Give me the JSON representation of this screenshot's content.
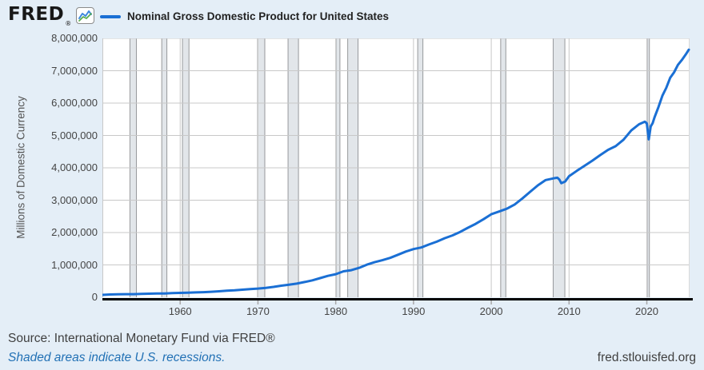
{
  "header": {
    "logo_text": "FRED",
    "registered": "®"
  },
  "footer": {
    "source_text": "Source: International Monetary Fund via FRED®",
    "recession_note": "Shaded areas indicate U.S. recessions.",
    "site_url": "fred.stlouisfed.org"
  },
  "colors": {
    "background": "#e4eef7",
    "plot_background": "#ffffff",
    "line": "#1a6fd4",
    "gridline": "#c8c8c8",
    "recession_fill": "#e2e6ea",
    "recession_edge": "#97999c",
    "axis": "#000000",
    "tick_mark": "#a8a8a8",
    "text": "#444444",
    "link": "#2271b5"
  },
  "chart_data": {
    "type": "line",
    "title": "Nominal Gross Domestic Product for United States",
    "xlabel": "",
    "ylabel": "Millions of Domestic Currency",
    "x_domain": [
      1950,
      2025.5
    ],
    "y_domain": [
      0,
      8000000
    ],
    "x_ticks": [
      1960,
      1970,
      1980,
      1990,
      2000,
      2010,
      2020
    ],
    "y_ticks": [
      0,
      1000000,
      2000000,
      3000000,
      4000000,
      5000000,
      6000000,
      7000000,
      8000000
    ],
    "y_tick_labels": [
      "0",
      "1,000,000",
      "2,000,000",
      "3,000,000",
      "4,000,000",
      "5,000,000",
      "6,000,000",
      "7,000,000",
      "8,000,000"
    ],
    "grid": true,
    "legend_position": "top-left",
    "recessions": [
      [
        1953.54,
        1954.37
      ],
      [
        1957.63,
        1958.29
      ],
      [
        1960.29,
        1961.13
      ],
      [
        1969.96,
        1970.88
      ],
      [
        1973.87,
        1975.21
      ],
      [
        1980.04,
        1980.54
      ],
      [
        1981.54,
        1982.87
      ],
      [
        1990.54,
        1991.21
      ],
      [
        2001.21,
        2001.87
      ],
      [
        2007.96,
        2009.46
      ],
      [
        2020.04,
        2020.33
      ]
    ],
    "series": [
      {
        "name": "Nominal Gross Domestic Product for United States",
        "points": [
          [
            1950,
            75000
          ],
          [
            1951,
            86600
          ],
          [
            1952,
            91200
          ],
          [
            1953,
            96500
          ],
          [
            1954,
            97000
          ],
          [
            1955,
            106300
          ],
          [
            1956,
            112100
          ],
          [
            1957,
            117900
          ],
          [
            1958,
            119500
          ],
          [
            1959,
            130200
          ],
          [
            1960,
            135500
          ],
          [
            1961,
            140200
          ],
          [
            1962,
            150700
          ],
          [
            1963,
            159000
          ],
          [
            1964,
            170700
          ],
          [
            1965,
            185900
          ],
          [
            1966,
            203700
          ],
          [
            1967,
            215400
          ],
          [
            1968,
            235300
          ],
          [
            1969,
            254500
          ],
          [
            1970,
            268300
          ],
          [
            1971,
            291500
          ],
          [
            1972,
            320300
          ],
          [
            1973,
            357700
          ],
          [
            1974,
            387600
          ],
          [
            1975,
            422700
          ],
          [
            1976,
            471100
          ],
          [
            1977,
            524100
          ],
          [
            1978,
            592600
          ],
          [
            1979,
            661700
          ],
          [
            1980,
            714300
          ],
          [
            1981,
            801300
          ],
          [
            1982,
            836100
          ],
          [
            1983,
            907700
          ],
          [
            1984,
            1008600
          ],
          [
            1985,
            1084800
          ],
          [
            1986,
            1146600
          ],
          [
            1987,
            1217700
          ],
          [
            1988,
            1313000
          ],
          [
            1989,
            1411800
          ],
          [
            1990,
            1489800
          ],
          [
            1991,
            1538700
          ],
          [
            1992,
            1631900
          ],
          [
            1993,
            1717300
          ],
          [
            1994,
            1825400
          ],
          [
            1995,
            1911700
          ],
          [
            1996,
            2020300
          ],
          [
            1997,
            2147800
          ],
          [
            1998,
            2268700
          ],
          [
            1999,
            2412100
          ],
          [
            2000,
            2564400
          ],
          [
            2001,
            2648700
          ],
          [
            2002,
            2734700
          ],
          [
            2003,
            2867100
          ],
          [
            2004,
            3055500
          ],
          [
            2005,
            3259900
          ],
          [
            2006,
            3459000
          ],
          [
            2007,
            3623000
          ],
          [
            2008.25,
            3686000
          ],
          [
            2008.5,
            3693000
          ],
          [
            2008.75,
            3636000
          ],
          [
            2009,
            3527000
          ],
          [
            2009.5,
            3578000
          ],
          [
            2010,
            3740000
          ],
          [
            2011,
            3906500
          ],
          [
            2012,
            4064000
          ],
          [
            2013,
            4221000
          ],
          [
            2014,
            4393700
          ],
          [
            2015,
            4553000
          ],
          [
            2016,
            4669500
          ],
          [
            2017,
            4870000
          ],
          [
            2018,
            5155000
          ],
          [
            2019,
            5345000
          ],
          [
            2019.75,
            5425000
          ],
          [
            2020,
            5375000
          ],
          [
            2020.25,
            4880000
          ],
          [
            2020.5,
            5280000
          ],
          [
            2020.75,
            5380000
          ],
          [
            2021,
            5570000
          ],
          [
            2021.5,
            5880000
          ],
          [
            2022,
            6230000
          ],
          [
            2022.5,
            6470000
          ],
          [
            2023,
            6780000
          ],
          [
            2023.5,
            6950000
          ],
          [
            2024,
            7180000
          ],
          [
            2024.5,
            7330000
          ],
          [
            2025,
            7500000
          ],
          [
            2025.4,
            7650000
          ]
        ]
      }
    ]
  }
}
